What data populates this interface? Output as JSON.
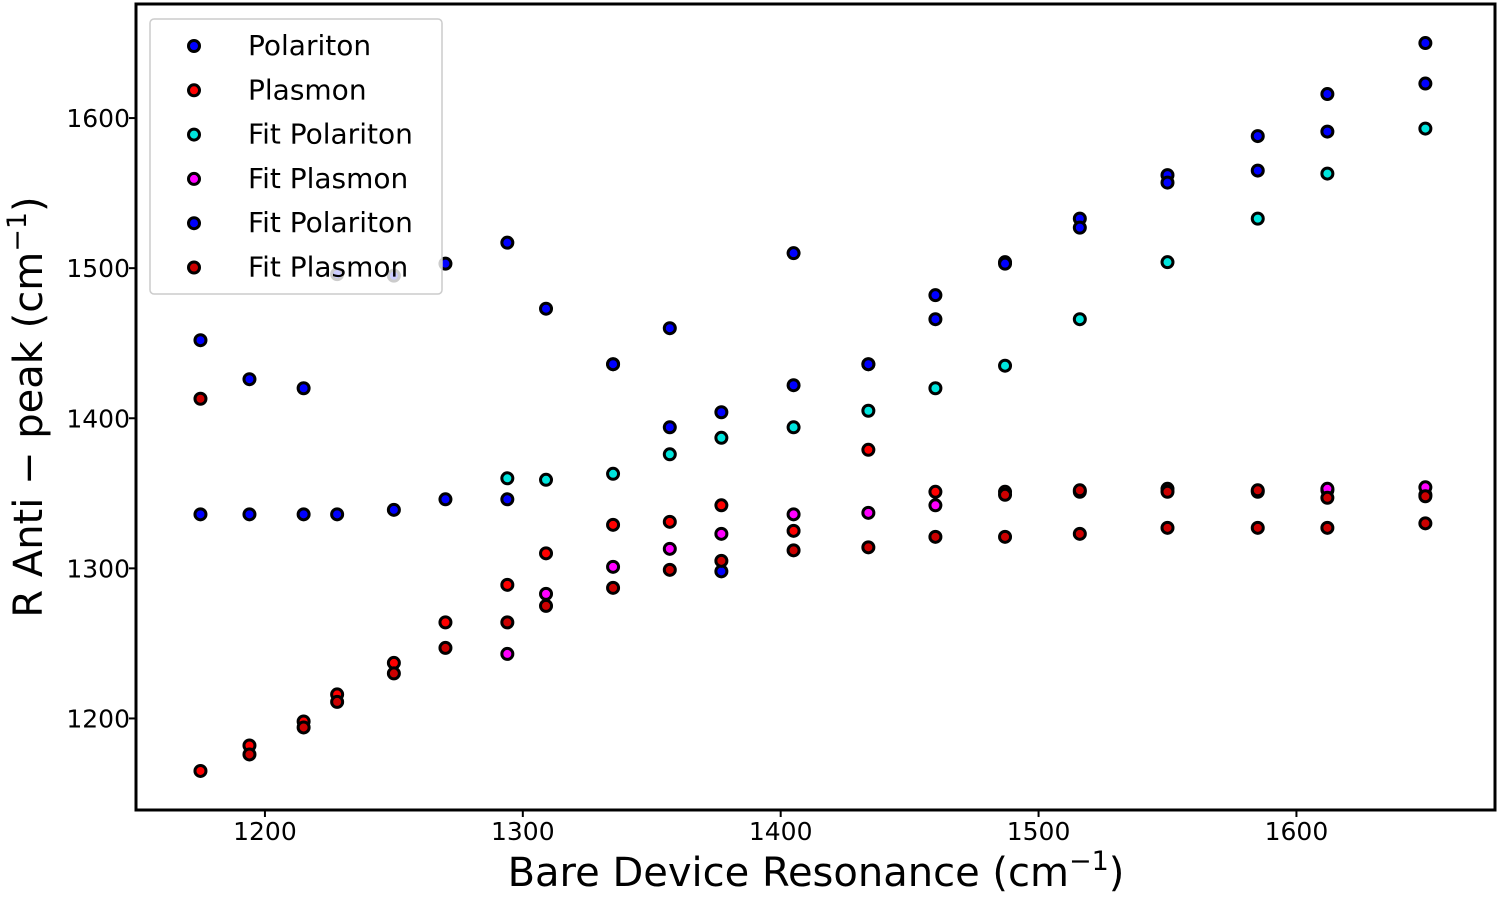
{
  "chart_data": {
    "type": "scatter",
    "xlabel_main": "Bare Device Resonance (cm",
    "xlabel_sup": "−1",
    "xlabel_end": ")",
    "ylabel_main": "R Anti − peak (cm",
    "ylabel_sup": "−1",
    "ylabel_end": ")",
    "xlim": [
      1150,
      1677
    ],
    "ylim": [
      1139,
      1676
    ],
    "xticks": [
      1200,
      1300,
      1400,
      1500,
      1600
    ],
    "yticks": [
      1200,
      1300,
      1400,
      1500,
      1600
    ],
    "grid": false,
    "legend_position": "top-left",
    "series": [
      {
        "name": "Polariton",
        "color": "#0000ff",
        "points": [
          [
            1175,
            1452
          ],
          [
            1194,
            1426
          ],
          [
            1215,
            1420
          ],
          [
            1228,
            1496
          ],
          [
            1250,
            1495
          ],
          [
            1270,
            1503
          ],
          [
            1294,
            1517
          ],
          [
            1309,
            1473
          ],
          [
            1335,
            1436
          ],
          [
            1357,
            1460
          ],
          [
            1405,
            1510
          ],
          [
            1434,
            1436
          ],
          [
            1460,
            1482
          ],
          [
            1487,
            1504
          ],
          [
            1516,
            1533
          ],
          [
            1550,
            1562
          ],
          [
            1585,
            1588
          ],
          [
            1612,
            1616
          ],
          [
            1650,
            1650
          ]
        ]
      },
      {
        "name": "Plasmon",
        "color": "#ff0000",
        "points": [
          [
            1175,
            1165
          ],
          [
            1194,
            1182
          ],
          [
            1215,
            1198
          ],
          [
            1228,
            1216
          ],
          [
            1250,
            1237
          ],
          [
            1270,
            1264
          ],
          [
            1294,
            1289
          ],
          [
            1309,
            1310
          ],
          [
            1335,
            1329
          ],
          [
            1357,
            1331
          ],
          [
            1377,
            1342
          ],
          [
            1405,
            1325
          ],
          [
            1434,
            1379
          ],
          [
            1460,
            1351
          ],
          [
            1487,
            1351
          ],
          [
            1516,
            1351
          ],
          [
            1550,
            1353
          ],
          [
            1585,
            1351
          ],
          [
            1612,
            1352
          ],
          [
            1650,
            1349
          ]
        ]
      },
      {
        "name": "Fit Polariton",
        "color": "#00e5dd",
        "points": [
          [
            1294,
            1360
          ],
          [
            1309,
            1359
          ],
          [
            1335,
            1363
          ],
          [
            1357,
            1376
          ],
          [
            1377,
            1387
          ],
          [
            1405,
            1394
          ],
          [
            1434,
            1405
          ],
          [
            1460,
            1420
          ],
          [
            1487,
            1435
          ],
          [
            1516,
            1466
          ],
          [
            1550,
            1504
          ],
          [
            1585,
            1533
          ],
          [
            1612,
            1563
          ],
          [
            1650,
            1593
          ]
        ]
      },
      {
        "name": "Fit Plasmon",
        "color": "#ff00ff",
        "points": [
          [
            1294,
            1243
          ],
          [
            1309,
            1283
          ],
          [
            1335,
            1301
          ],
          [
            1357,
            1313
          ],
          [
            1377,
            1323
          ],
          [
            1405,
            1336
          ],
          [
            1434,
            1337
          ],
          [
            1460,
            1342
          ],
          [
            1612,
            1353
          ],
          [
            1650,
            1354
          ]
        ]
      },
      {
        "name": "Fit Polariton",
        "color": "#0000ff",
        "points": [
          [
            1175,
            1336
          ],
          [
            1194,
            1336
          ],
          [
            1215,
            1336
          ],
          [
            1228,
            1336
          ],
          [
            1250,
            1339
          ],
          [
            1270,
            1346
          ],
          [
            1294,
            1346
          ],
          [
            1335,
            1436
          ],
          [
            1357,
            1394
          ],
          [
            1377,
            1404
          ],
          [
            1377,
            1298
          ],
          [
            1405,
            1422
          ],
          [
            1434,
            1436
          ],
          [
            1460,
            1466
          ],
          [
            1487,
            1503
          ],
          [
            1516,
            1527
          ],
          [
            1550,
            1557
          ],
          [
            1585,
            1565
          ],
          [
            1612,
            1591
          ],
          [
            1650,
            1623
          ]
        ]
      },
      {
        "name": "Fit Plasmon",
        "color": "#cc0000",
        "points": [
          [
            1175,
            1413
          ],
          [
            1194,
            1176
          ],
          [
            1215,
            1194
          ],
          [
            1228,
            1211
          ],
          [
            1250,
            1230
          ],
          [
            1270,
            1247
          ],
          [
            1294,
            1264
          ],
          [
            1309,
            1275
          ],
          [
            1335,
            1287
          ],
          [
            1357,
            1299
          ],
          [
            1377,
            1305
          ],
          [
            1405,
            1312
          ],
          [
            1434,
            1314
          ],
          [
            1460,
            1321
          ],
          [
            1487,
            1321
          ],
          [
            1516,
            1323
          ],
          [
            1550,
            1327
          ],
          [
            1585,
            1327
          ],
          [
            1612,
            1327
          ],
          [
            1650,
            1330
          ],
          [
            1612,
            1347
          ],
          [
            1650,
            1348
          ],
          [
            1585,
            1352
          ],
          [
            1550,
            1351
          ],
          [
            1516,
            1352
          ],
          [
            1487,
            1349
          ]
        ]
      }
    ]
  }
}
